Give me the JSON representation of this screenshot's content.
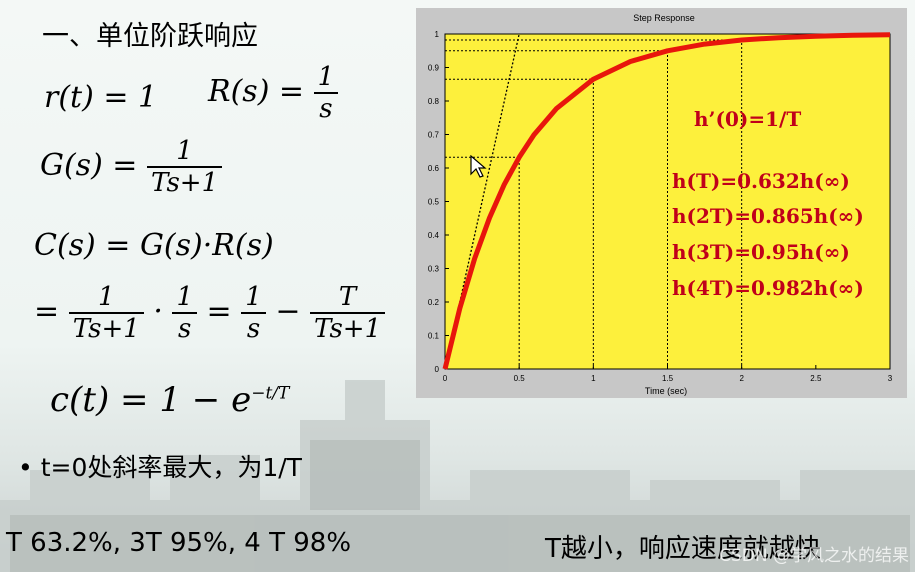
{
  "heading": "一、单位阶跃响应",
  "equations": {
    "r_lhs": "r(t) = 1",
    "R_lhs": "R(s) =",
    "R_num": "1",
    "R_den": "s",
    "G_lhs": "G(s) =",
    "G_num": "1",
    "G_den": "Ts+1",
    "C_line": "C(s) = G(s)·R(s)",
    "eq_prefix": "=",
    "f1_num": "1",
    "f1_den": "Ts+1",
    "dot": "·",
    "f2_num": "1",
    "f2_den": "s",
    "eq2": "=",
    "f3_num": "1",
    "f3_den": "s",
    "minus": "−",
    "f4_num": "T",
    "f4_den": "Ts+1",
    "c_lhs": "c(t) = 1 − e",
    "c_exp": "−t/T"
  },
  "bullet": "•    t=0处斜率最大，为1/T",
  "bottom_left": "T  63.2%,  3T  95%,  4 T  98%",
  "bottom_right": "T越小，响应速度就越快",
  "watermark": "CSDN @学风之水的结果",
  "colors": {
    "plot_bg": "#fdf03c",
    "curve": "#e8160c",
    "formula": "#c0001a"
  },
  "chart_data": {
    "type": "line",
    "title": "Step Response",
    "xlabel": "Time (sec)",
    "ylabel": "",
    "xlim": [
      0,
      3
    ],
    "ylim": [
      0,
      1
    ],
    "x_ticks": [
      "0",
      "0.5",
      "1",
      "1.5",
      "2",
      "2.5",
      "3"
    ],
    "y_ticks": [
      "0",
      "0.1",
      "0.2",
      "0.3",
      "0.4",
      "0.5",
      "0.6",
      "0.7",
      "0.8",
      "0.9",
      "1"
    ],
    "time_constant": 0.5,
    "series": [
      {
        "values_x": [
          0,
          0.1,
          0.2,
          0.3,
          0.4,
          0.5,
          0.6,
          0.75,
          1.0,
          1.25,
          1.5,
          1.75,
          2.0,
          2.25,
          2.5,
          2.75,
          3.0
        ],
        "values_y": [
          0,
          0.181,
          0.33,
          0.451,
          0.551,
          0.632,
          0.699,
          0.777,
          0.865,
          0.918,
          0.95,
          0.97,
          0.982,
          0.989,
          0.993,
          0.996,
          0.998
        ]
      }
    ],
    "reference_points": [
      {
        "x": 0.5,
        "y": 0.632
      },
      {
        "x": 1.0,
        "y": 0.865
      },
      {
        "x": 1.5,
        "y": 0.95
      },
      {
        "x": 2.0,
        "y": 0.982
      }
    ],
    "tangent": {
      "from": [
        0,
        0
      ],
      "to": [
        0.5,
        1
      ]
    },
    "annotations": [
      "h’(0)=1/T",
      "h(T)=0.632h(∞)",
      "h(2T)=0.865h(∞)",
      "h(3T)=0.95h(∞)",
      "h(4T)=0.982h(∞)"
    ]
  }
}
